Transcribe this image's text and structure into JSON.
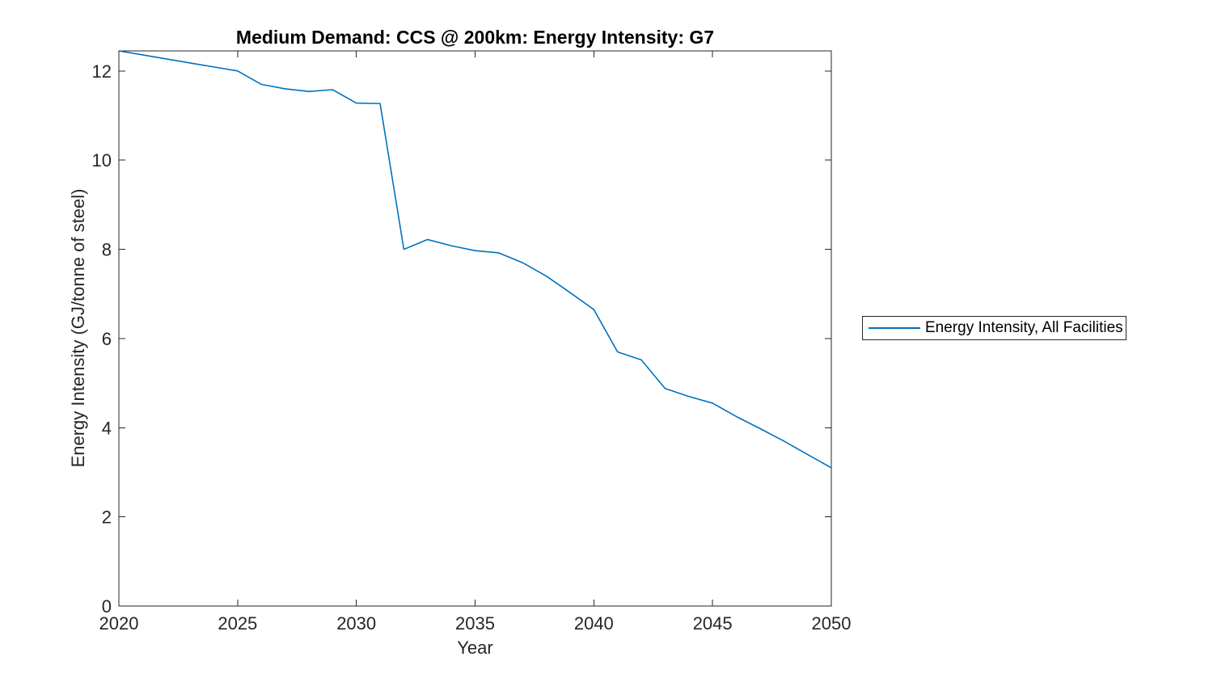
{
  "chart_data": {
    "type": "line",
    "title": "Medium Demand: CCS @ 200km: Energy Intensity: G7",
    "xlabel": "Year",
    "ylabel": "Energy Intensity (GJ/tonne of steel)",
    "x": [
      2020,
      2021,
      2022,
      2023,
      2024,
      2025,
      2026,
      2027,
      2028,
      2029,
      2030,
      2031,
      2032,
      2033,
      2034,
      2035,
      2036,
      2037,
      2038,
      2039,
      2040,
      2041,
      2042,
      2043,
      2044,
      2045,
      2046,
      2047,
      2048,
      2049,
      2050
    ],
    "series": [
      {
        "name": "Energy Intensity, All Facilities",
        "color": "#0072BD",
        "values": [
          12.45,
          12.36,
          12.27,
          12.18,
          12.09,
          12.0,
          11.7,
          11.6,
          11.54,
          11.58,
          11.28,
          11.27,
          8.0,
          8.22,
          8.08,
          7.97,
          7.92,
          7.7,
          7.4,
          7.03,
          6.65,
          5.7,
          5.52,
          4.88,
          4.7,
          4.55,
          4.25,
          3.98,
          3.7,
          3.4,
          3.1
        ]
      }
    ],
    "xlim": [
      2020,
      2050
    ],
    "ylim": [
      0,
      12.45
    ],
    "xticks": [
      2020,
      2025,
      2030,
      2035,
      2040,
      2045,
      2050
    ],
    "yticks": [
      0,
      2,
      4,
      6,
      8,
      10,
      12
    ],
    "grid": false,
    "legend_position": "right-outside",
    "axis_color": "#262626",
    "tick_label_color": "#262626",
    "background": "#ffffff"
  }
}
